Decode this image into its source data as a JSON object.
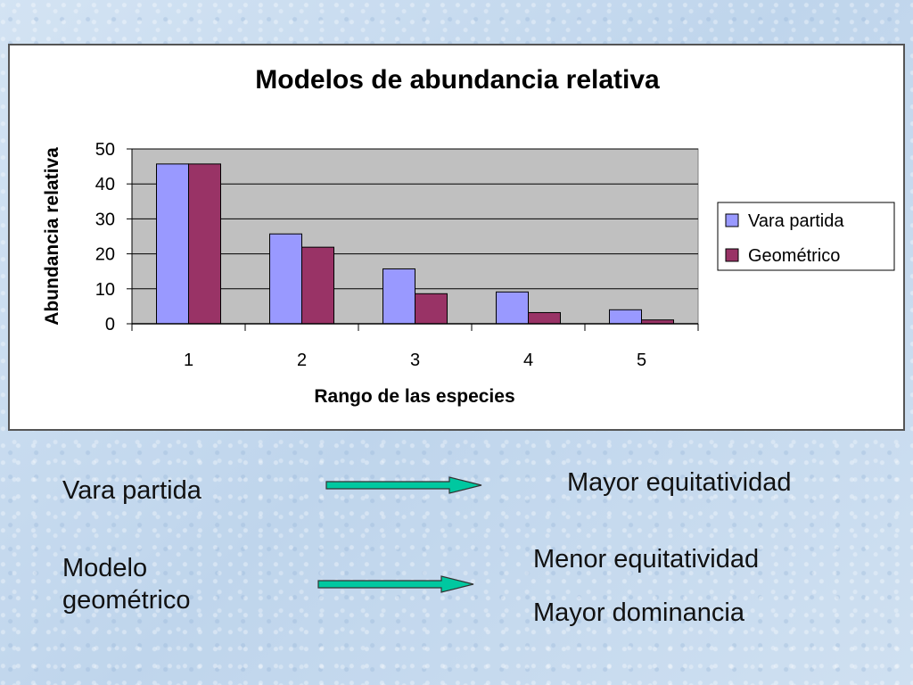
{
  "chart_data": {
    "type": "bar",
    "title": "Modelos de abundancia relativa",
    "xlabel": "Rango de las especies",
    "ylabel": "Abundancia relativa",
    "categories": [
      "1",
      "2",
      "3",
      "4",
      "5"
    ],
    "ylim": [
      0,
      50
    ],
    "yticks": [
      "0",
      "10",
      "20",
      "30",
      "40",
      "50"
    ],
    "grid": true,
    "legend_position": "right",
    "series": [
      {
        "name": "Vara partida",
        "values": [
          45.7,
          25.7,
          15.7,
          9.1,
          4.0
        ],
        "color": "#9999ff"
      },
      {
        "name": "Geométrico",
        "values": [
          45.7,
          21.9,
          8.6,
          3.2,
          1.1
        ],
        "color": "#993366"
      }
    ],
    "plot_background": "#c0c0c0"
  },
  "annotations": {
    "model1": "Vara partida",
    "model2_line1": "Modelo",
    "model2_line2": "geométrico",
    "result1": "Mayor equitatividad",
    "result2a": "Menor equitatividad",
    "result2b": "Mayor dominancia",
    "arrow_color": "#00c8a0"
  }
}
